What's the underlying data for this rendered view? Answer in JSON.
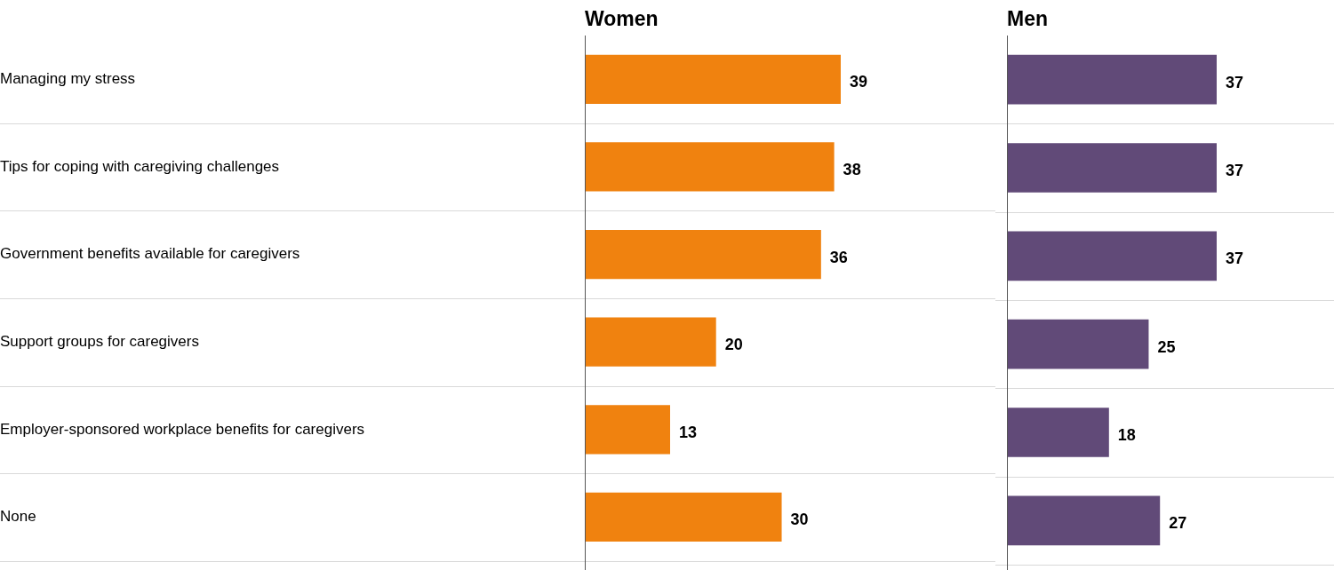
{
  "chart_data": [
    {
      "type": "bar",
      "orientation": "horizontal",
      "title": "Women",
      "categories": [
        "Managing my stress",
        "Tips for coping with caregiving challenges",
        "Government benefits available for caregivers",
        "Support groups for caregivers",
        "Employer-sponsored workplace benefits for caregivers",
        "None"
      ],
      "values": [
        39,
        38,
        36,
        20,
        13,
        30
      ],
      "color": "#f0820f",
      "data_labels": true,
      "grid": "y",
      "tick_labels": "y"
    },
    {
      "type": "bar",
      "orientation": "horizontal",
      "title": "Men",
      "categories": [
        null,
        null,
        null,
        null,
        null,
        null
      ],
      "values": [
        37,
        37,
        37,
        25,
        18,
        27
      ],
      "color": "#614a78",
      "data_labels": true,
      "grid": "y",
      "tick_labels": false
    }
  ]
}
